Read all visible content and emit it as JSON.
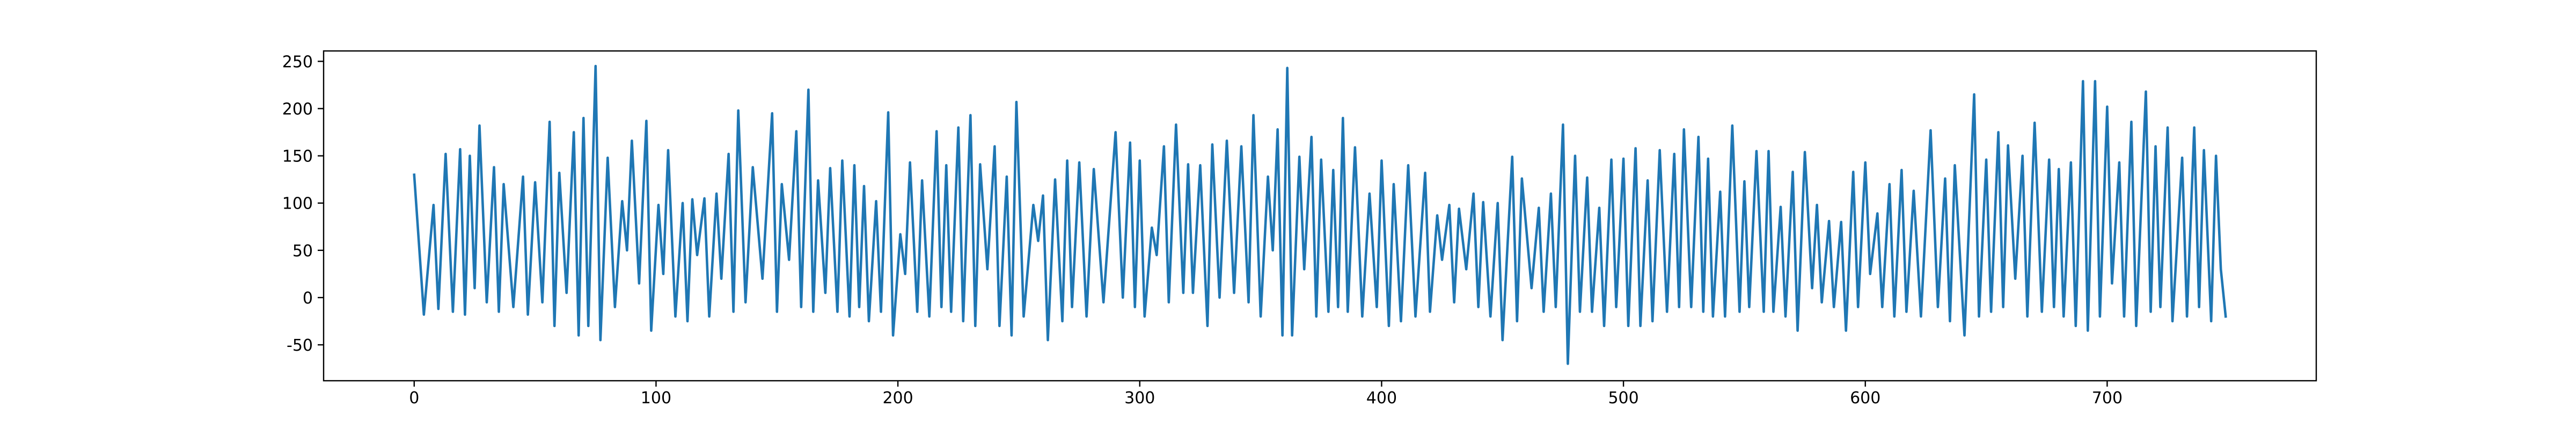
{
  "chart_data": {
    "type": "line",
    "color": "#1f77b4",
    "xlim": [
      -37.45,
      786.45
    ],
    "ylim": [
      -88,
      261
    ],
    "xticks": [
      0,
      100,
      200,
      300,
      400,
      500,
      600,
      700
    ],
    "yticks": [
      -50,
      0,
      50,
      100,
      150,
      200,
      250
    ],
    "x": [
      0,
      4,
      8,
      10,
      13,
      16,
      19,
      21,
      23,
      25,
      27,
      30,
      33,
      35,
      37,
      41,
      45,
      47,
      50,
      53,
      56,
      58,
      60,
      63,
      66,
      68,
      70,
      72,
      75,
      77,
      80,
      83,
      86,
      88,
      90,
      93,
      96,
      98,
      101,
      103,
      105,
      108,
      111,
      113,
      115,
      117,
      120,
      122,
      125,
      127,
      130,
      132,
      134,
      137,
      140,
      144,
      148,
      150,
      152,
      155,
      158,
      160,
      163,
      165,
      167,
      170,
      172,
      175,
      177,
      180,
      182,
      184,
      186,
      188,
      191,
      193,
      196,
      198,
      201,
      203,
      205,
      208,
      210,
      213,
      216,
      218,
      220,
      222,
      225,
      227,
      230,
      232,
      234,
      237,
      240,
      242,
      245,
      247,
      249,
      252,
      256,
      258,
      260,
      262,
      265,
      268,
      270,
      272,
      275,
      278,
      281,
      285,
      290,
      293,
      296,
      298,
      300,
      302,
      305,
      307,
      310,
      312,
      315,
      318,
      320,
      322,
      325,
      328,
      330,
      333,
      336,
      339,
      342,
      345,
      347,
      350,
      353,
      355,
      357,
      359,
      361,
      363,
      366,
      368,
      371,
      373,
      375,
      378,
      380,
      382,
      384,
      386,
      389,
      392,
      395,
      398,
      400,
      403,
      405,
      408,
      411,
      414,
      418,
      420,
      423,
      425,
      428,
      430,
      432,
      435,
      438,
      440,
      442,
      445,
      448,
      450,
      454,
      456,
      458,
      462,
      465,
      467,
      470,
      472,
      475,
      477,
      480,
      482,
      485,
      487,
      490,
      492,
      495,
      497,
      500,
      502,
      505,
      507,
      510,
      512,
      515,
      518,
      521,
      523,
      525,
      528,
      531,
      533,
      535,
      537,
      540,
      542,
      545,
      548,
      550,
      552,
      555,
      558,
      560,
      562,
      565,
      567,
      570,
      572,
      575,
      578,
      580,
      582,
      585,
      587,
      590,
      592,
      595,
      597,
      600,
      602,
      605,
      607,
      610,
      612,
      615,
      617,
      620,
      623,
      627,
      630,
      633,
      635,
      637,
      641,
      645,
      647,
      650,
      652,
      655,
      657,
      659,
      662,
      665,
      667,
      670,
      673,
      676,
      678,
      680,
      682,
      685,
      687,
      690,
      692,
      695,
      697,
      700,
      702,
      705,
      707,
      710,
      712,
      716,
      718,
      720,
      722,
      725,
      727,
      731,
      733,
      736,
      738,
      740,
      743,
      745,
      747,
      749
    ],
    "values": [
      130,
      -18,
      98,
      -12,
      152,
      -15,
      157,
      -18,
      150,
      10,
      182,
      -5,
      138,
      -15,
      120,
      -10,
      128,
      -18,
      122,
      -5,
      186,
      -30,
      132,
      5,
      175,
      -40,
      190,
      -30,
      245,
      -45,
      148,
      -10,
      102,
      50,
      166,
      15,
      187,
      -35,
      98,
      25,
      156,
      -20,
      100,
      -25,
      104,
      45,
      105,
      -20,
      110,
      20,
      152,
      -15,
      198,
      -5,
      138,
      20,
      195,
      -15,
      120,
      40,
      176,
      -10,
      220,
      -15,
      124,
      5,
      137,
      -15,
      145,
      -20,
      140,
      -10,
      118,
      -25,
      102,
      -15,
      196,
      -40,
      67,
      25,
      143,
      -15,
      124,
      -20,
      176,
      -10,
      140,
      -15,
      180,
      -25,
      193,
      -30,
      141,
      30,
      160,
      -30,
      128,
      -40,
      207,
      -20,
      98,
      60,
      108,
      -45,
      125,
      -25,
      145,
      -10,
      143,
      -20,
      136,
      -5,
      175,
      0,
      164,
      -10,
      145,
      -20,
      74,
      45,
      160,
      -5,
      183,
      5,
      141,
      5,
      140,
      -30,
      162,
      0,
      166,
      5,
      160,
      -5,
      193,
      -20,
      128,
      50,
      178,
      -40,
      243,
      -40,
      149,
      30,
      170,
      -20,
      146,
      -15,
      135,
      -10,
      190,
      -15,
      159,
      -20,
      110,
      -10,
      145,
      -30,
      120,
      -25,
      140,
      -20,
      132,
      -15,
      87,
      40,
      98,
      -5,
      94,
      30,
      110,
      -10,
      101,
      -20,
      100,
      -45,
      149,
      -25,
      126,
      10,
      95,
      -15,
      110,
      -10,
      183,
      -70,
      150,
      -15,
      127,
      -15,
      95,
      -30,
      146,
      -10,
      147,
      -30,
      158,
      -30,
      124,
      -25,
      156,
      -15,
      152,
      -10,
      178,
      -10,
      170,
      -15,
      147,
      -20,
      112,
      -20,
      182,
      -15,
      123,
      -10,
      155,
      -15,
      155,
      -15,
      96,
      -20,
      133,
      -35,
      154,
      10,
      98,
      -5,
      81,
      -10,
      80,
      -35,
      133,
      -10,
      143,
      25,
      89,
      -10,
      120,
      -20,
      135,
      -15,
      113,
      -20,
      177,
      -10,
      126,
      -25,
      140,
      -40,
      215,
      -20,
      146,
      -15,
      175,
      -10,
      161,
      20,
      150,
      -20,
      185,
      -15,
      146,
      -10,
      136,
      -20,
      143,
      -30,
      229,
      -35,
      229,
      -20,
      202,
      15,
      143,
      -20,
      186,
      -30,
      218,
      -15,
      160,
      -10,
      180,
      -25,
      148,
      -20,
      180,
      -10,
      156,
      -25,
      150,
      30,
      -20
    ]
  }
}
